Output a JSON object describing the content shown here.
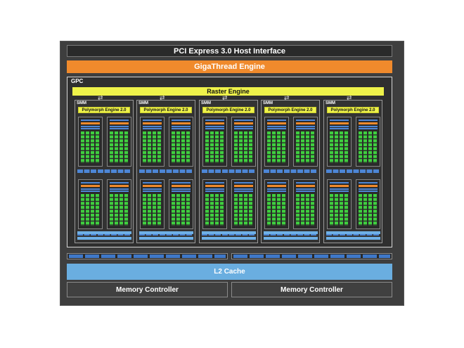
{
  "pcie": "PCI Express 3.0 Host Interface",
  "gigathread": "GigaThread Engine",
  "gpc": {
    "label": "GPC",
    "raster": "Raster Engine"
  },
  "smm": {
    "label": "SMM",
    "polymorph": "Polymorph Engine 2.0",
    "count": 5
  },
  "l2": "L2 Cache",
  "memory_controllers": [
    "Memory Controller",
    "Memory Controller"
  ],
  "colors": {
    "orange": "#f08a2c",
    "yellow": "#eef24a",
    "green": "#3fcf3f",
    "blue": "#4d86d6",
    "light_blue": "#6aaee0",
    "background": "#3e3e3e"
  }
}
